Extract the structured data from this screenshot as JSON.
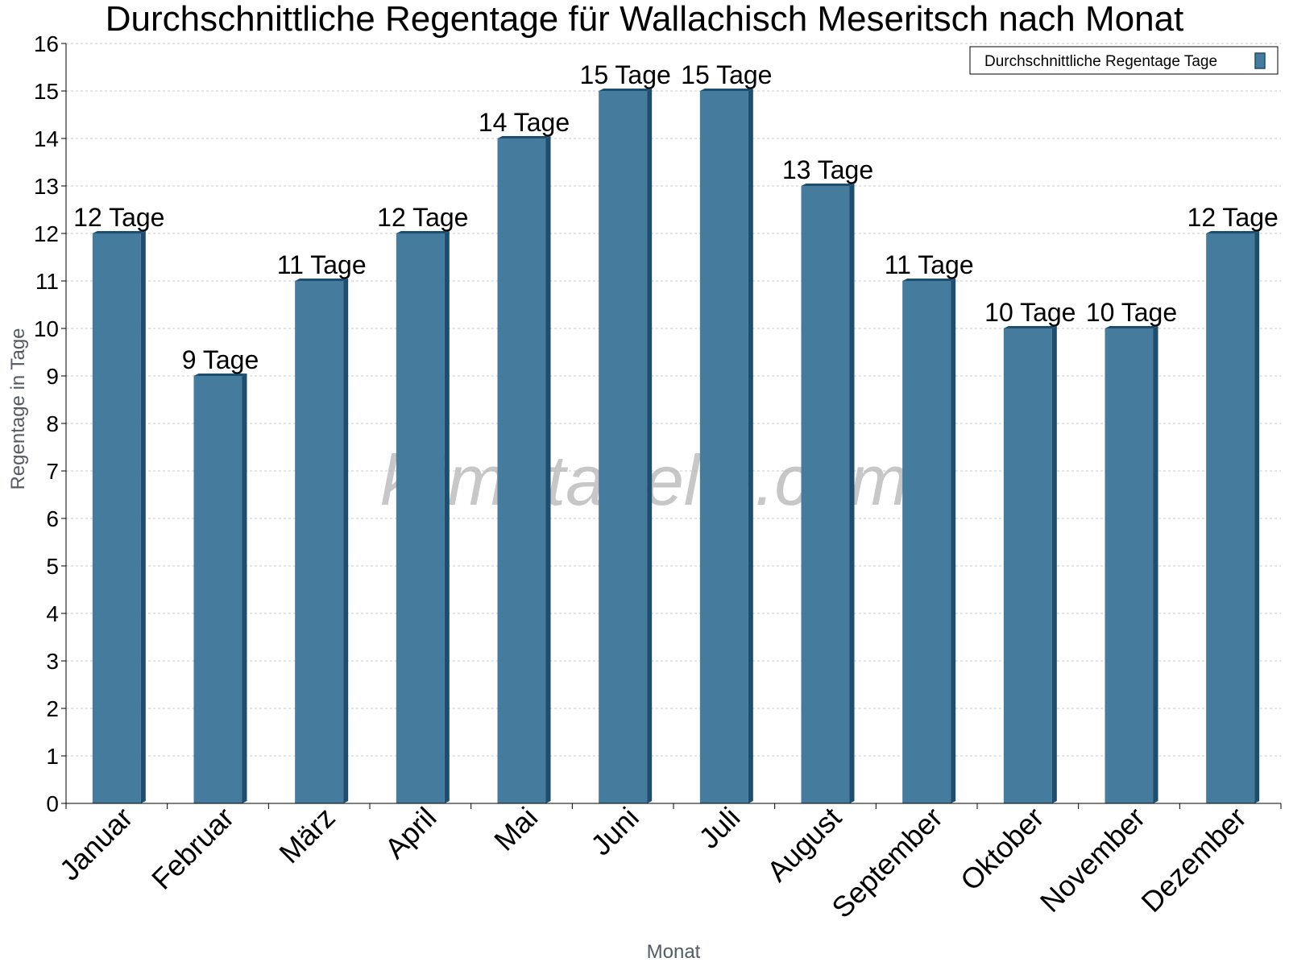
{
  "chart_data": {
    "type": "bar",
    "title": "Durchschnittliche Regentage für Wallachisch Meseritsch nach Monat",
    "xlabel": "Monat",
    "ylabel": "Regentage in Tage",
    "categories": [
      "Januar",
      "Februar",
      "März",
      "April",
      "Mai",
      "Juni",
      "Juli",
      "August",
      "September",
      "Oktober",
      "November",
      "Dezember"
    ],
    "series": [
      {
        "name": "Durchschnittliche Regentage Tage",
        "values": [
          12,
          9,
          11,
          12,
          14,
          15,
          15,
          13,
          11,
          10,
          10,
          12
        ],
        "labels": [
          "12 Tage",
          "9 Tage",
          "11 Tage",
          "12 Tage",
          "14 Tage",
          "15 Tage",
          "15 Tage",
          "13 Tage",
          "11 Tage",
          "10 Tage",
          "10 Tage",
          "12 Tage"
        ]
      }
    ],
    "ylim": [
      0,
      16
    ],
    "yticks": [
      "0",
      "1",
      "2",
      "3",
      "4",
      "5",
      "6",
      "7",
      "8",
      "9",
      "10",
      "11",
      "12",
      "13",
      "14",
      "15",
      "16"
    ],
    "grid": true,
    "legend_position": "top-right",
    "colors": {
      "bar": "#457b9d",
      "bar_side": "#1d4e6e",
      "bar_top": "#1d4e6e",
      "grid": "#c8c8c8",
      "axis": "#000000"
    }
  },
  "watermark": "klimatabelle.com"
}
